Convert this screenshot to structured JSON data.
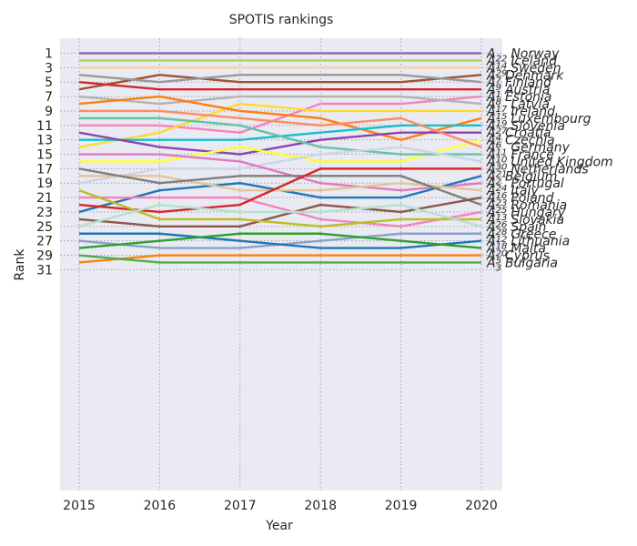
{
  "chart_data": {
    "type": "line",
    "title": "SPOTIS rankings",
    "xlabel": "Year",
    "ylabel": "Rank",
    "x": [
      2015,
      2016,
      2017,
      2018,
      2019,
      2020
    ],
    "y_ticks": [
      1,
      3,
      5,
      7,
      9,
      11,
      13,
      15,
      17,
      19,
      21,
      23,
      25,
      27,
      29,
      31
    ],
    "ylim": [
      31.5,
      0
    ],
    "y_inverted": true,
    "grid": "dotted",
    "background_color": "#eaeaf2",
    "series": [
      {
        "name": "A22 Norway",
        "letter": "A",
        "sub": "22",
        "country": "Norway",
        "color": "#9467bd",
        "values": [
          1,
          1,
          1,
          1,
          1,
          1
        ]
      },
      {
        "name": "A14 Iceland",
        "letter": "A",
        "sub": "14",
        "country": "Iceland",
        "color": "#a6d854",
        "values": [
          2,
          2,
          2,
          2,
          2,
          2
        ]
      },
      {
        "name": "A29 Sweden",
        "letter": "A",
        "sub": "29",
        "country": "Sweden",
        "color": "#fdd0a2",
        "values": [
          3,
          3,
          3,
          3,
          3,
          3
        ]
      },
      {
        "name": "A7 Denmark",
        "letter": "A",
        "sub": "7",
        "country": "Denmark",
        "color": "#a0522d",
        "values": [
          6,
          4,
          5,
          5,
          5,
          4
        ]
      },
      {
        "name": "A9 Finland",
        "letter": "A",
        "sub": "9",
        "country": "Finland",
        "color": "#999999",
        "values": [
          4,
          5,
          4,
          4,
          4,
          5
        ]
      },
      {
        "name": "A1 Austria",
        "letter": "A",
        "sub": "1",
        "country": "Austria",
        "color": "#d62728",
        "values": [
          5,
          6,
          6,
          6,
          6,
          6
        ]
      },
      {
        "name": "A8 Estonia",
        "letter": "A",
        "sub": "8",
        "country": "Estonia",
        "color": "#f781bf",
        "values": [
          11,
          11,
          12,
          8,
          8,
          7
        ]
      },
      {
        "name": "A17 Latvia",
        "letter": "A",
        "sub": "17",
        "country": "Latvia",
        "color": "#b3b3b3",
        "values": [
          7,
          8,
          7,
          7,
          7,
          8
        ]
      },
      {
        "name": "A15 Ireland",
        "letter": "A",
        "sub": "15",
        "country": "Ireland",
        "color": "#ffd92f",
        "values": [
          14,
          12,
          8,
          9,
          9,
          9
        ]
      },
      {
        "name": "A19 Luxembourg",
        "letter": "A",
        "sub": "19",
        "country": "Luxembourg",
        "color": "#ff7f0e",
        "values": [
          8,
          7,
          9,
          10,
          13,
          10
        ]
      },
      {
        "name": "A27 Slovenia",
        "letter": "A",
        "sub": "27",
        "country": "Slovenia",
        "color": "#17becf",
        "values": [
          13,
          13,
          13,
          12,
          11,
          11
        ]
      },
      {
        "name": "A4 Croatia",
        "letter": "A",
        "sub": "4",
        "country": "Croatia",
        "color": "#8e44ad",
        "values": [
          12,
          14,
          15,
          13,
          12,
          12
        ]
      },
      {
        "name": "A6 Czechia",
        "letter": "A",
        "sub": "6",
        "country": "Czechia",
        "color": "#ffff33",
        "values": [
          16,
          16,
          14,
          16,
          16,
          13
        ]
      },
      {
        "name": "A11 Germany",
        "letter": "A",
        "sub": "11",
        "country": "Germany",
        "color": "#fc8d62",
        "values": [
          9,
          9,
          10,
          11,
          10,
          14
        ]
      },
      {
        "name": "A10 France",
        "letter": "A",
        "sub": "10",
        "country": "France",
        "color": "#66c2a5",
        "values": [
          10,
          10,
          11,
          14,
          15,
          15
        ]
      },
      {
        "name": "A30 United Kingdom",
        "letter": "A",
        "sub": "30",
        "country": "United Kingdom",
        "color": "#cbd5e8",
        "values": [
          19,
          17,
          17,
          15,
          14,
          16
        ]
      },
      {
        "name": "A21 Netherlands",
        "letter": "A",
        "sub": "21",
        "country": "Netherlands",
        "color": "#e377c2",
        "values": [
          15,
          15,
          16,
          19,
          20,
          19
        ]
      },
      {
        "name": "A2 Belgium",
        "letter": "A",
        "sub": "2",
        "country": "Belgium",
        "color": "#1f77b4",
        "values": [
          23,
          20,
          19,
          21,
          21,
          18
        ]
      },
      {
        "name": "A24 Portugal",
        "letter": "A",
        "sub": "24",
        "country": "Portugal",
        "color": "#f781bf",
        "values": [
          21,
          21,
          21,
          24,
          25,
          23
        ]
      },
      {
        "name": "A16 Italy",
        "letter": "A",
        "sub": "16",
        "country": "Italy",
        "color": "#e5c494",
        "values": [
          18,
          18,
          20,
          20,
          19,
          20
        ]
      },
      {
        "name": "A23 Poland",
        "letter": "A",
        "sub": "23",
        "country": "Poland",
        "color": "#7f7f7f",
        "values": [
          17,
          19,
          18,
          18,
          18,
          22
        ]
      },
      {
        "name": "A25 Romania",
        "letter": "A",
        "sub": "25",
        "country": "Romania",
        "color": "#d62728",
        "values": [
          22,
          23,
          22,
          17,
          17,
          17
        ]
      },
      {
        "name": "A13 Hungary",
        "letter": "A",
        "sub": "13",
        "country": "Hungary",
        "color": "#8c564b",
        "values": [
          24,
          25,
          25,
          22,
          23,
          21
        ]
      },
      {
        "name": "A26 Slovakia",
        "letter": "A",
        "sub": "26",
        "country": "Slovakia",
        "color": "#bcbd22",
        "values": [
          20,
          24,
          24,
          25,
          24,
          24
        ]
      },
      {
        "name": "A28 Spain",
        "letter": "A",
        "sub": "28",
        "country": "Spain",
        "color": "#b3e2cd",
        "values": [
          25,
          22,
          23,
          23,
          22,
          25
        ]
      },
      {
        "name": "A12 Greece",
        "letter": "A",
        "sub": "12",
        "country": "Greece",
        "color": "#8da0cb",
        "values": [
          27,
          28,
          28,
          27,
          26,
          26
        ]
      },
      {
        "name": "A18 Lithuania",
        "letter": "A",
        "sub": "18",
        "country": "Lithuania",
        "color": "#1f77b4",
        "values": [
          26,
          26,
          27,
          28,
          28,
          27
        ]
      },
      {
        "name": "A20 Malta",
        "letter": "A",
        "sub": "20",
        "country": "Malta",
        "color": "#2ca02c",
        "values": [
          28,
          27,
          26,
          26,
          27,
          28
        ]
      },
      {
        "name": "A5 Cyprus",
        "letter": "A",
        "sub": "5",
        "country": "Cyprus",
        "color": "#ff7f0e",
        "values": [
          30,
          29,
          29,
          29,
          29,
          29
        ]
      },
      {
        "name": "A3 Bulgaria",
        "letter": "A",
        "sub": "3",
        "country": "Bulgaria",
        "color": "#4daf4a",
        "values": [
          29,
          30,
          30,
          30,
          30,
          30
        ]
      }
    ]
  }
}
